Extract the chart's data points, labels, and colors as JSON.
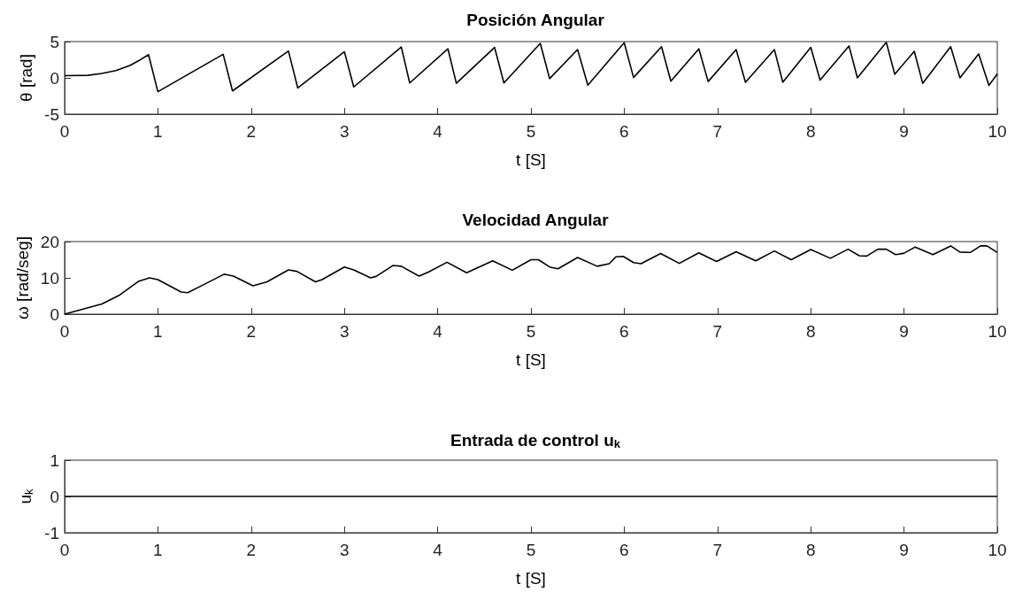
{
  "chart_data": [
    {
      "type": "line",
      "title": "Posición Angular",
      "xlabel": "t [S]",
      "ylabel": "θ [rad]",
      "marker": "none",
      "xlim": [
        0,
        10
      ],
      "xticks": [
        0,
        1,
        2,
        3,
        4,
        5,
        6,
        7,
        8,
        9,
        10
      ],
      "ylim": [
        -5,
        5
      ],
      "yticks": [
        -5,
        0,
        5
      ],
      "x": [
        0,
        0.25,
        0.4,
        0.55,
        0.7,
        0.8,
        0.9,
        1.0,
        1.7,
        1.8,
        2.4,
        2.5,
        3.0,
        3.1,
        3.61,
        3.7,
        4.11,
        4.2,
        4.61,
        4.71,
        5.1,
        5.2,
        5.5,
        5.61,
        6.0,
        6.1,
        6.4,
        6.5,
        6.8,
        6.9,
        7.2,
        7.3,
        7.61,
        7.7,
        8.0,
        8.1,
        8.41,
        8.5,
        8.81,
        8.9,
        9.11,
        9.2,
        9.5,
        9.6,
        9.8,
        9.91,
        10
      ],
      "series": [
        {
          "color": "#000000",
          "values": [
            0.3,
            0.35,
            0.6,
            1.0,
            1.7,
            2.4,
            3.2,
            -1.9,
            3.25,
            -1.8,
            3.7,
            -1.4,
            3.6,
            -1.25,
            4.25,
            -0.7,
            4.0,
            -0.75,
            4.2,
            -0.7,
            4.75,
            -0.1,
            3.9,
            -1.0,
            4.85,
            0.05,
            4.3,
            -0.45,
            4.0,
            -0.5,
            3.9,
            -0.6,
            3.9,
            -0.6,
            4.2,
            -0.3,
            4.4,
            0,
            4.9,
            0.5,
            3.65,
            -0.75,
            4.3,
            0,
            3.3,
            -1.05,
            0.55
          ]
        }
      ]
    },
    {
      "type": "line",
      "title": "Velocidad Angular",
      "xlabel": "t [S]",
      "ylabel": "ω [rad/seg]",
      "marker": "none",
      "xlim": [
        0,
        10
      ],
      "xticks": [
        0,
        1,
        2,
        3,
        4,
        5,
        6,
        7,
        8,
        9,
        10
      ],
      "ylim": [
        0,
        20
      ],
      "yticks": [
        0,
        10,
        20
      ],
      "x": [
        0,
        0.4,
        0.58,
        0.79,
        0.91,
        1.0,
        1.25,
        1.32,
        1.45,
        1.71,
        1.81,
        2.02,
        2.17,
        2.4,
        2.49,
        2.69,
        2.76,
        3.0,
        3.1,
        3.28,
        3.34,
        3.52,
        3.61,
        3.8,
        3.9,
        4.1,
        4.31,
        4.59,
        4.8,
        5.0,
        5.08,
        5.2,
        5.29,
        5.5,
        5.71,
        5.84,
        5.91,
        5.99,
        6.1,
        6.18,
        6.39,
        6.59,
        6.8,
        6.99,
        7.2,
        7.41,
        7.61,
        7.79,
        8.0,
        8.21,
        8.4,
        8.52,
        8.6,
        8.72,
        8.81,
        8.91,
        9.0,
        9.12,
        9.31,
        9.5,
        9.6,
        9.71,
        9.82,
        9.89,
        10
      ],
      "series": [
        {
          "color": "#000000",
          "values": [
            0,
            2.8,
            5.1,
            9.0,
            10.0,
            9.5,
            6.1,
            5.9,
            7.6,
            11.0,
            10.5,
            7.8,
            8.9,
            12.2,
            11.8,
            8.9,
            9.5,
            13.0,
            12.2,
            10.0,
            10.4,
            13.4,
            13.2,
            10.5,
            11.6,
            14.3,
            11.4,
            14.7,
            12.1,
            15.0,
            15.0,
            13.0,
            12.5,
            15.6,
            13.2,
            13.9,
            15.8,
            15.9,
            14.2,
            13.9,
            16.7,
            14.0,
            16.9,
            14.5,
            17.2,
            14.7,
            17.4,
            15.0,
            17.8,
            15.4,
            17.9,
            16.1,
            16.0,
            17.9,
            17.9,
            16.4,
            16.8,
            18.5,
            16.4,
            18.8,
            17.1,
            17.0,
            18.8,
            18.8,
            17.0
          ]
        }
      ]
    },
    {
      "type": "line",
      "title": "Entrada de control u$_{k}$",
      "xlabel": "t [S]",
      "ylabel": "u$_{k}$",
      "marker": "none",
      "xlim": [
        0,
        10
      ],
      "xticks": [
        0,
        1,
        2,
        3,
        4,
        5,
        6,
        7,
        8,
        9,
        10
      ],
      "ylim": [
        -1,
        1
      ],
      "yticks": [
        -1,
        0,
        1
      ],
      "x": [
        0,
        10
      ],
      "series": [
        {
          "color": "#000000",
          "values": [
            0,
            0
          ]
        }
      ]
    }
  ]
}
